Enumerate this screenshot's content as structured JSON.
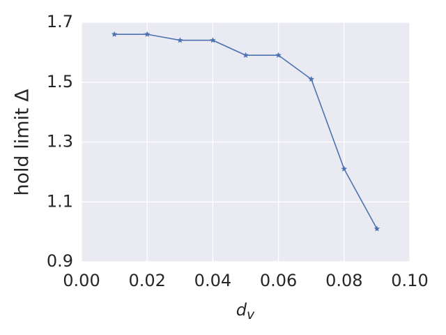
{
  "chart_data": {
    "type": "line",
    "xlabel": "d_v",
    "ylabel": "hold limit Δ",
    "x": [
      0.01,
      0.02,
      0.03,
      0.04,
      0.05,
      0.06,
      0.07,
      0.08,
      0.09
    ],
    "values": [
      1.66,
      1.66,
      1.64,
      1.64,
      1.59,
      1.59,
      1.51,
      1.21,
      1.01
    ],
    "color": "#4c72b0",
    "marker": "star",
    "xlim": [
      0,
      0.1
    ],
    "xticks": [
      {
        "value": 0,
        "label": "0.00"
      },
      0.02,
      0.04,
      0.06,
      0.08,
      {
        "value": 0.1,
        "label": "0.10"
      }
    ],
    "ylim": [
      0.9,
      1.7
    ],
    "yticks": [
      0.9,
      1.1,
      1.3,
      1.5,
      1.7
    ],
    "grid": true
  }
}
